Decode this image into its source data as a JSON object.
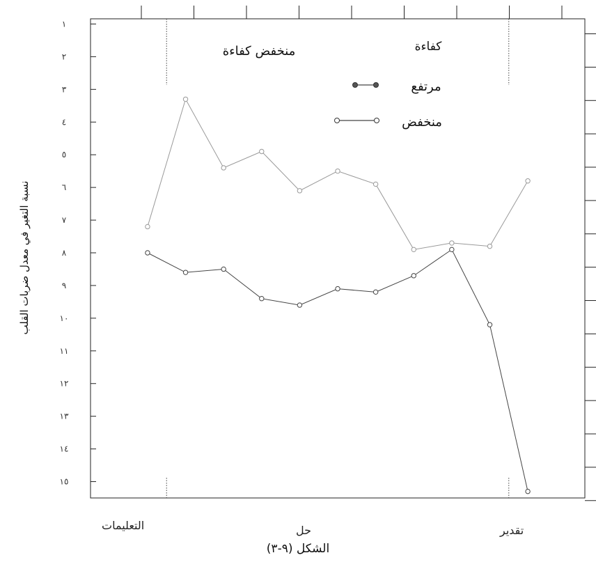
{
  "chart_data": {
    "type": "line",
    "ylabel": "نسبة التغير في معدل ضربات القلب",
    "y_tick_labels": [
      "١",
      "٢",
      "٣",
      "٤",
      "٥",
      "٦",
      "٧",
      "٨",
      "٩",
      "١٠",
      "١١",
      "١٢",
      "١٣",
      "١٤",
      "١٥"
    ],
    "ylim": [
      0.5,
      15.5
    ],
    "y_inverted": true,
    "x_domain": [
      0,
      13
    ],
    "phase_boundaries": [
      2,
      11
    ],
    "phase_labels": [
      "التعليمات",
      "حل",
      "تقدير"
    ],
    "annotation": "منخفض كفاءة",
    "legend": {
      "title": "كفاءة",
      "placement": "top-right",
      "entries": [
        {
          "label": "مرتفع",
          "marker": "filled"
        },
        {
          "label": "منخفض",
          "marker": "open"
        }
      ]
    },
    "series": [
      {
        "name": "مرتفع",
        "color": "#444444",
        "x": [
          1.5,
          2.5,
          3.5,
          4.5,
          5.5,
          6.5,
          7.5,
          8.5,
          9.5,
          10.5,
          11.5
        ],
        "y": [
          8.0,
          8.6,
          8.5,
          9.4,
          9.6,
          9.1,
          9.2,
          8.7,
          7.9,
          10.2,
          15.3
        ]
      },
      {
        "name": "منخفض",
        "color": "#999999",
        "x": [
          1.5,
          2.5,
          3.5,
          4.5,
          5.5,
          6.5,
          7.5,
          8.5,
          9.5,
          10.5,
          11.5
        ],
        "y": [
          7.2,
          3.3,
          5.4,
          4.9,
          6.1,
          5.5,
          5.9,
          7.9,
          7.7,
          7.8,
          5.8
        ]
      }
    ]
  },
  "caption": "الشكل (٩-٣)",
  "colors": {
    "axis": "#222222",
    "high": "#444444",
    "low": "#999999"
  }
}
